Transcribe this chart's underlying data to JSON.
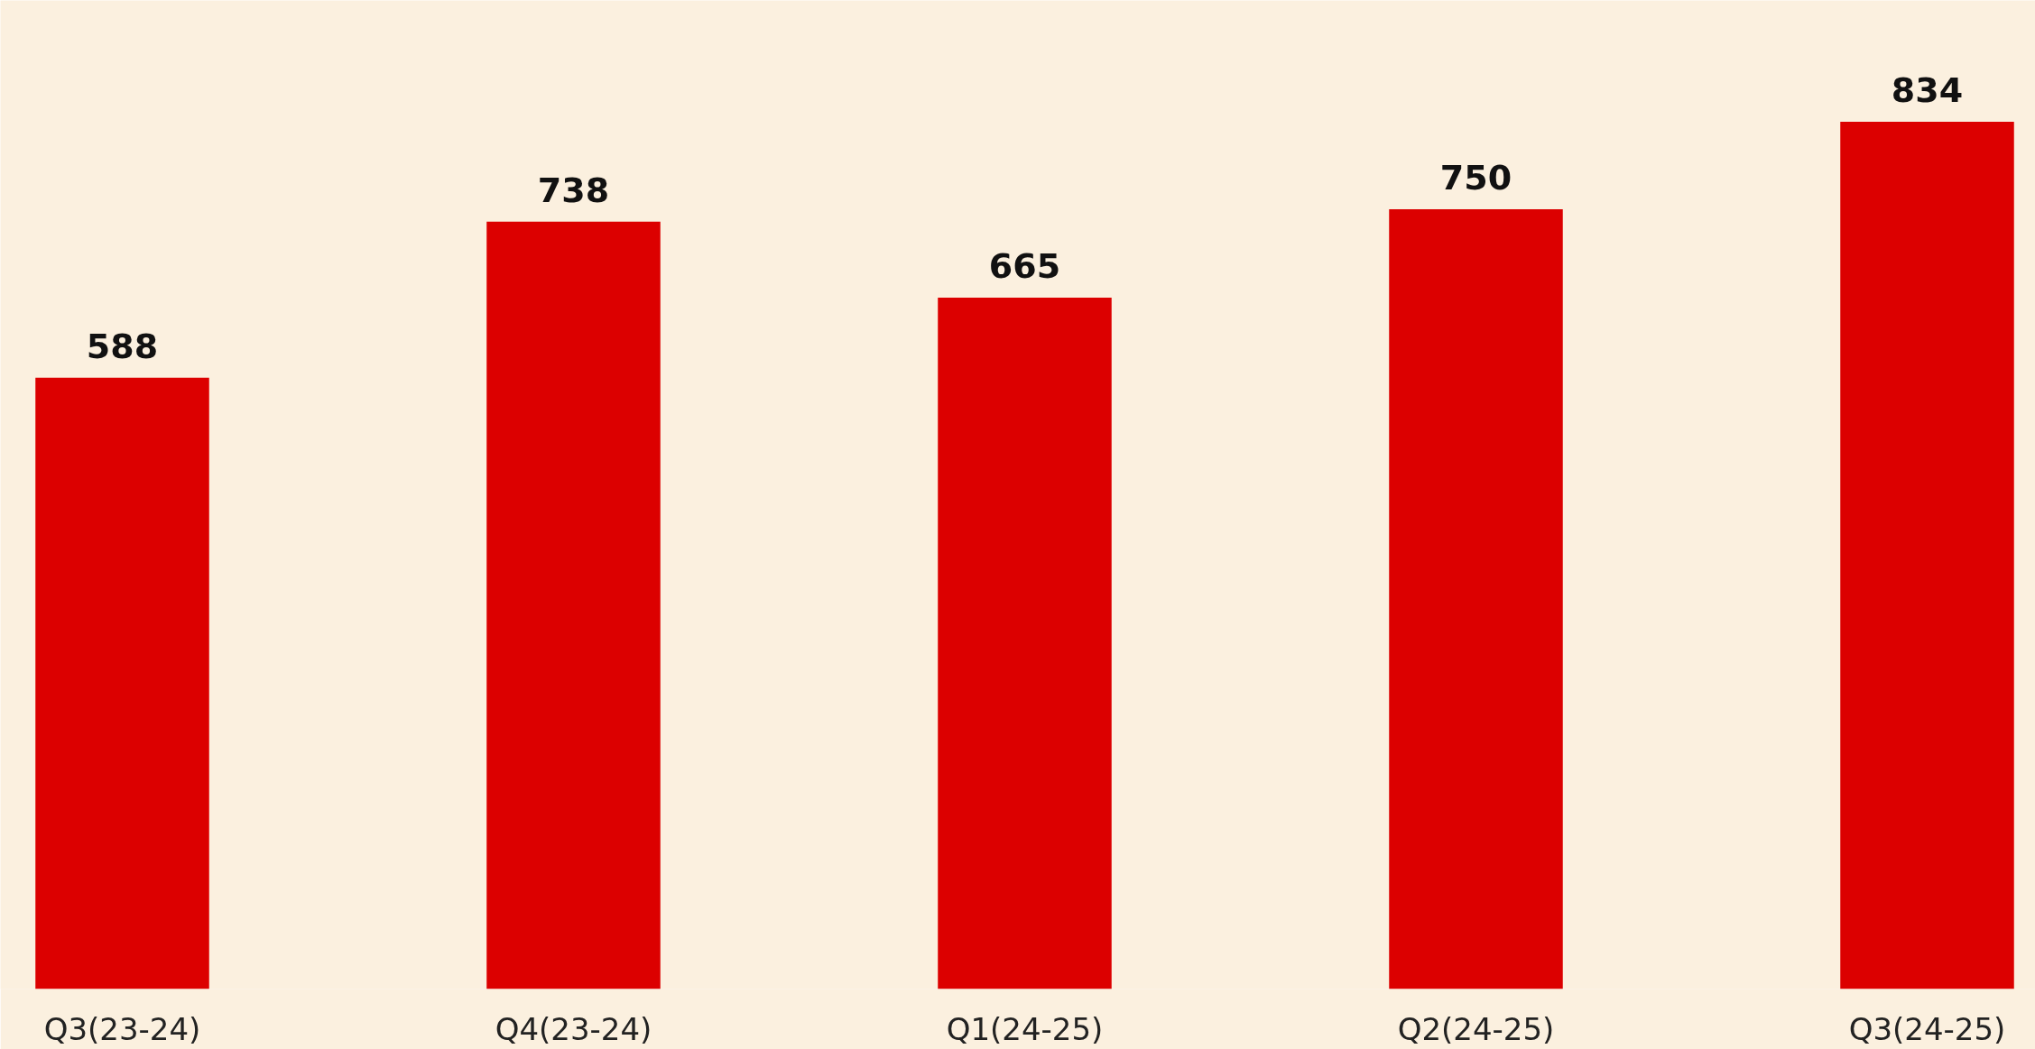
{
  "chart_data": {
    "type": "bar",
    "categories": [
      "Q3(23-24)",
      "Q4(23-24)",
      "Q1(24-25)",
      "Q2(24-25)",
      "Q3(24-25)"
    ],
    "values": [
      588,
      738,
      665,
      750,
      834
    ],
    "color": "#dc0000",
    "data_labels": true
  }
}
